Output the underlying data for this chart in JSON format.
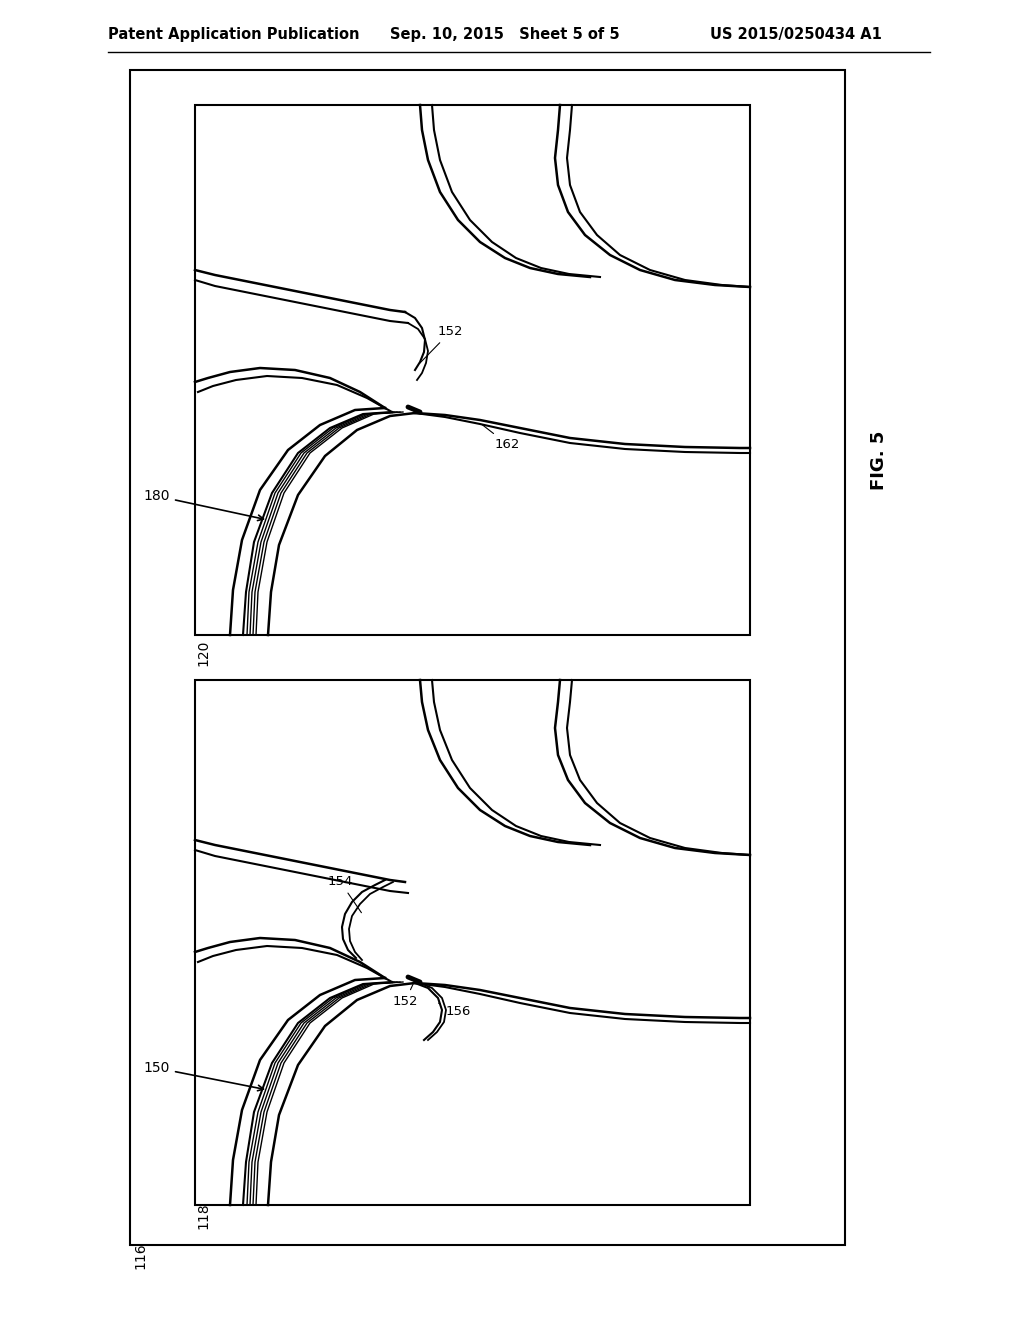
{
  "bg_color": "#ffffff",
  "header_text": "Patent Application Publication",
  "header_date": "Sep. 10, 2015   Sheet 5 of 5",
  "header_patent": "US 2015/0250434 A1",
  "fig_label": "FIG. 5",
  "top_panel_label": "120",
  "bottom_panel_label": "116",
  "bottom_inner_label": "118",
  "top_arrow_label": "180",
  "bottom_arrow_label": "150",
  "top_ref_152": "152",
  "top_ref_162": "162",
  "bot_ref_154": "154",
  "bot_ref_152": "152",
  "bot_ref_156": "156"
}
